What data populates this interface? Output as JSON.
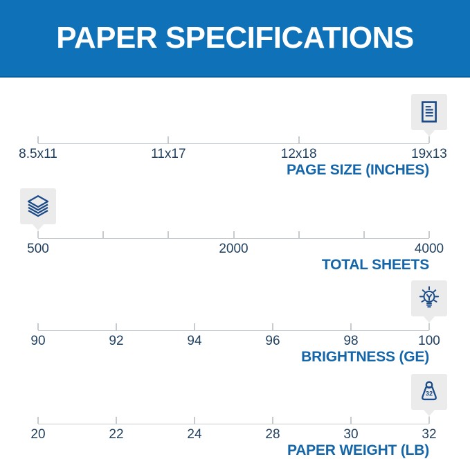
{
  "header": {
    "title": "PAPER SPECIFICATIONS"
  },
  "colors": {
    "banner_blue": "#0f71b7",
    "banner_edge": "#0b5f9c",
    "icon_navy": "#1a4a87",
    "tick_label_navy": "#22405f",
    "section_label_blue": "#1566a9",
    "axis_gray": "#c6cbd0",
    "badge_gray": "#ebebeb",
    "title_white": "#ffffff"
  },
  "chart_data": [
    {
      "type": "scale",
      "title": "PAGE SIZE (INCHES)",
      "icon": "document-icon",
      "tick_labels": [
        "8.5x11",
        "11x17",
        "12x18",
        "19x13"
      ],
      "selected": "19x13",
      "selected_index": 3
    },
    {
      "type": "scale",
      "title": "TOTAL SHEETS",
      "icon": "paper-stack-icon",
      "tick_labels": [
        "500",
        "",
        "",
        "2000",
        "",
        "",
        "4000"
      ],
      "selected": "500",
      "selected_index": 0
    },
    {
      "type": "scale",
      "title": "BRIGHTNESS (GE)",
      "icon": "lightbulb-icon",
      "tick_labels": [
        "90",
        "92",
        "94",
        "96",
        "98",
        "100"
      ],
      "selected": "100",
      "selected_index": 5
    },
    {
      "type": "scale",
      "title": "PAPER WEIGHT (LB)",
      "icon": "weight-icon",
      "icon_text": "32",
      "tick_labels": [
        "20",
        "22",
        "24",
        "28",
        "30",
        "32"
      ],
      "selected": "32",
      "selected_index": 5
    }
  ]
}
